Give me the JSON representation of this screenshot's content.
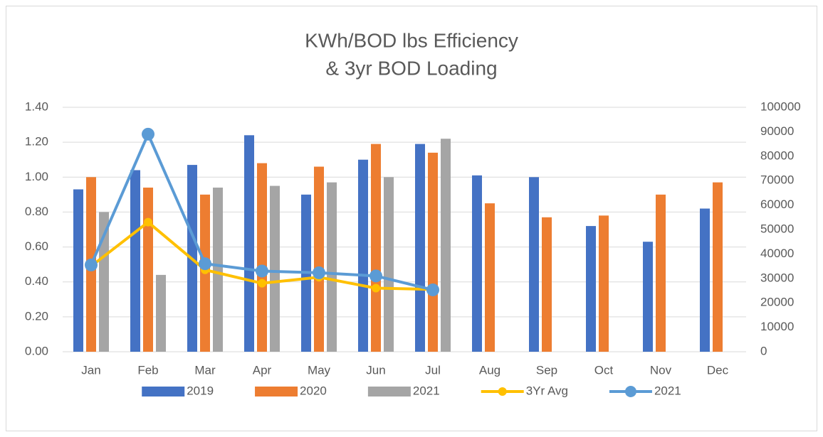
{
  "chart_data": {
    "type": "bar",
    "title": [
      "KWh/BOD lbs Efficiency",
      "& 3yr BOD Loading"
    ],
    "categories": [
      "Jan",
      "Feb",
      "Mar",
      "Apr",
      "May",
      "Jun",
      "Jul",
      "Aug",
      "Sep",
      "Oct",
      "Nov",
      "Dec"
    ],
    "series": [
      {
        "name": "2019",
        "type": "bar",
        "color": "#4472c4",
        "values": [
          0.93,
          1.04,
          1.07,
          1.24,
          0.9,
          1.1,
          1.19,
          1.01,
          1.0,
          0.72,
          0.63,
          0.82
        ]
      },
      {
        "name": "2020",
        "type": "bar",
        "color": "#ed7d31",
        "values": [
          1.0,
          0.94,
          0.9,
          1.08,
          1.06,
          1.19,
          1.14,
          0.85,
          0.77,
          0.78,
          0.9,
          0.97
        ]
      },
      {
        "name": "2021",
        "type": "bar",
        "color": "#a5a5a5",
        "values": [
          0.8,
          0.44,
          0.94,
          0.95,
          0.97,
          1.0,
          1.22,
          null,
          null,
          null,
          null,
          null
        ]
      },
      {
        "name": "3Yr Avg",
        "type": "line",
        "axis": "y2",
        "color": "#ffc000",
        "values": [
          35000,
          53000,
          33500,
          28000,
          30500,
          26000,
          25500,
          null,
          null,
          null,
          null,
          null
        ]
      },
      {
        "name": "2021",
        "type": "line",
        "axis": "y2",
        "color": "#5b9bd5",
        "values": [
          35500,
          89000,
          36000,
          33000,
          32300,
          31000,
          25300,
          null,
          null,
          null,
          null,
          null
        ]
      }
    ],
    "ylim": [
      0,
      1.4
    ],
    "yticks": [
      {
        "value": 0,
        "label": "0.00"
      },
      {
        "value": 0.2,
        "label": "0.20"
      },
      {
        "value": 0.4,
        "label": "0.40"
      },
      {
        "value": 0.6,
        "label": "0.60"
      },
      {
        "value": 0.8,
        "label": "0.80"
      },
      {
        "value": 1.0,
        "label": "1.00"
      },
      {
        "value": 1.2,
        "label": "1.20"
      },
      {
        "value": 1.4,
        "label": "1.40"
      }
    ],
    "y2lim": [
      0,
      100000
    ],
    "y2ticks": [
      0,
      10000,
      20000,
      30000,
      40000,
      50000,
      60000,
      70000,
      80000,
      90000,
      100000
    ],
    "grid": true,
    "legend": "bottom"
  }
}
